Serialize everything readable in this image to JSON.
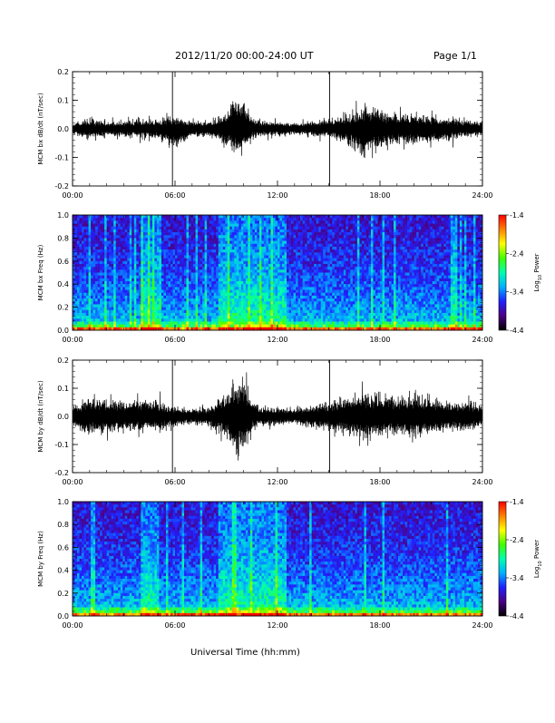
{
  "header": {
    "date_range": "2012/11/20  00:00-24:00 UT",
    "page": "Page 1/1"
  },
  "colors": {
    "trace": "#000000",
    "colormap": [
      "#000000",
      "#4b0082",
      "#2020ff",
      "#00b0ff",
      "#00ffb0",
      "#40ff00",
      "#ffff00",
      "#ff8000",
      "#ff0000"
    ]
  },
  "x_axis_label": "Universal Time (hh:mm)",
  "chart_data": [
    {
      "type": "line",
      "ylabel": "MCM bx dB/dt (nT/sec)",
      "xlim": [
        "00:00",
        "24:00"
      ],
      "ylim": [
        -0.2,
        0.2
      ],
      "x_ticks": [
        "00:00",
        "06:00",
        "12:00",
        "18:00",
        "24:00"
      ],
      "y_ticks": [
        "0.2",
        "0.1",
        "0.0",
        "-0.1",
        "-0.2"
      ],
      "vertical_markers_hours": [
        5.85,
        15.05
      ],
      "envelope_hours": [
        0,
        1,
        2,
        3,
        4,
        5,
        6,
        7,
        8,
        9,
        9.5,
        10,
        10.5,
        11,
        12,
        13,
        14,
        15,
        16,
        17,
        18,
        19,
        20,
        21,
        22,
        23,
        24
      ],
      "envelope_max": [
        0.03,
        0.05,
        0.04,
        0.04,
        0.05,
        0.05,
        0.06,
        0.04,
        0.04,
        0.09,
        0.18,
        0.17,
        0.05,
        0.04,
        0.04,
        0.03,
        0.04,
        0.05,
        0.07,
        0.12,
        0.1,
        0.08,
        0.08,
        0.07,
        0.06,
        0.05,
        0.04
      ],
      "envelope_min": [
        -0.03,
        -0.05,
        -0.04,
        -0.04,
        -0.05,
        -0.05,
        -0.12,
        -0.04,
        -0.04,
        -0.08,
        -0.13,
        -0.12,
        -0.05,
        -0.04,
        -0.04,
        -0.03,
        -0.04,
        -0.05,
        -0.07,
        -0.15,
        -0.1,
        -0.08,
        -0.08,
        -0.07,
        -0.06,
        -0.05,
        -0.04
      ]
    },
    {
      "type": "heatmap",
      "ylabel": "MCM bx Freq (Hz)",
      "xlim": [
        "00:00",
        "24:00"
      ],
      "ylim": [
        0.0,
        1.0
      ],
      "x_ticks": [
        "00:00",
        "06:00",
        "12:00",
        "18:00",
        "24:00"
      ],
      "y_ticks": [
        "1.0",
        "0.8",
        "0.6",
        "0.4",
        "0.2",
        "0.0"
      ],
      "colorbar": {
        "label": "Log10 Power",
        "label_main": "Log",
        "label_sub": "10",
        "label_tail": " Power",
        "range": [
          -4.4,
          -1.4
        ],
        "ticks": [
          "-1.4",
          "-2.4",
          "-3.4",
          "-4.4"
        ]
      },
      "active_periods_hours": [
        [
          4.0,
          5.0
        ],
        [
          8.5,
          12.5
        ]
      ]
    },
    {
      "type": "line",
      "ylabel": "MCM by dB/dt (nT/sec)",
      "xlim": [
        "00:00",
        "24:00"
      ],
      "ylim": [
        -0.2,
        0.2
      ],
      "x_ticks": [
        "00:00",
        "06:00",
        "12:00",
        "18:00",
        "24:00"
      ],
      "y_ticks": [
        "0.2",
        "0.1",
        "0.0",
        "-0.1",
        "-0.2"
      ],
      "vertical_markers_hours": [
        5.85,
        15.05
      ],
      "envelope_hours": [
        0,
        1,
        2,
        3,
        4,
        5,
        6,
        7,
        8,
        9,
        9.5,
        10,
        10.5,
        11,
        12,
        13,
        14,
        15,
        16,
        17,
        18,
        19,
        20,
        21,
        22,
        23,
        24
      ],
      "envelope_max": [
        0.05,
        0.1,
        0.09,
        0.08,
        0.09,
        0.08,
        0.06,
        0.04,
        0.05,
        0.12,
        0.2,
        0.2,
        0.08,
        0.05,
        0.05,
        0.04,
        0.06,
        0.08,
        0.1,
        0.13,
        0.12,
        0.1,
        0.12,
        0.1,
        0.08,
        0.08,
        0.06
      ],
      "envelope_min": [
        -0.05,
        -0.1,
        -0.09,
        -0.08,
        -0.08,
        -0.08,
        -0.06,
        -0.04,
        -0.05,
        -0.12,
        -0.2,
        -0.2,
        -0.08,
        -0.05,
        -0.05,
        -0.04,
        -0.06,
        -0.08,
        -0.1,
        -0.12,
        -0.11,
        -0.1,
        -0.11,
        -0.09,
        -0.08,
        -0.08,
        -0.06
      ]
    },
    {
      "type": "heatmap",
      "ylabel": "MCM by Freq (Hz)",
      "xlim": [
        "00:00",
        "24:00"
      ],
      "ylim": [
        0.0,
        1.0
      ],
      "x_ticks": [
        "00:00",
        "06:00",
        "12:00",
        "18:00",
        "24:00"
      ],
      "y_ticks": [
        "1.0",
        "0.8",
        "0.6",
        "0.4",
        "0.2",
        "0.0"
      ],
      "colorbar": {
        "label": "Log10 Power",
        "label_main": "Log",
        "label_sub": "10",
        "label_tail": " Power",
        "range": [
          -4.4,
          -1.4
        ],
        "ticks": [
          "-1.4",
          "-2.4",
          "-3.4",
          "-4.4"
        ]
      },
      "active_periods_hours": [
        [
          4.0,
          5.0
        ],
        [
          8.5,
          12.5
        ]
      ]
    }
  ]
}
